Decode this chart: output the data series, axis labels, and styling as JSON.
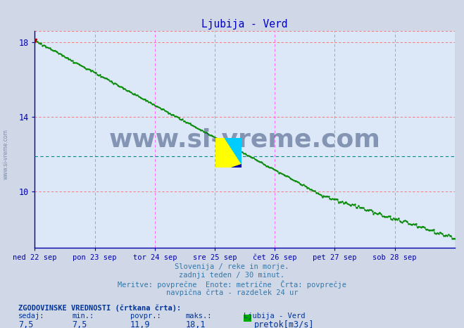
{
  "title": "Ljubija - Verd",
  "title_color": "#0000cc",
  "bg_color": "#d0d8e8",
  "plot_bg_color": "#dce8f8",
  "grid_color_h": "#ff6666",
  "grid_color_v": "#ff66ff",
  "xlabel_days": [
    "ned 22 sep",
    "pon 23 sep",
    "tor 24 sep",
    "sre 25 sep",
    "čet 26 sep",
    "pet 27 sep",
    "sob 28 sep"
  ],
  "day_positions": [
    0,
    48,
    96,
    144,
    192,
    240,
    288
  ],
  "total_points": 337,
  "ylim": [
    7.0,
    18.6
  ],
  "yticks": [
    10,
    14,
    18
  ],
  "line_color": "#008800",
  "avg_line_color": "#008888",
  "avg_line_value": 11.9,
  "watermark_text": "www.si-vreme.com",
  "watermark_color": "#1a3060",
  "watermark_alpha": 0.45,
  "sidebar_text": "www.si-vreme.com",
  "subtitle_lines": [
    "Slovenija / reke in morje.",
    "zadnji teden / 30 minut.",
    "Meritve: povprečne  Enote: metrične  Črta: povprečje",
    "navpična črta - razdelek 24 ur"
  ],
  "subtitle_color": "#3377aa",
  "legend_title": "ZGODOVINSKE VREDNOSTI (črtkana črta):",
  "legend_headers": [
    "sedaj:",
    "min.:",
    "povpr.:",
    "maks.:",
    "Ljubija - Verd"
  ],
  "legend_values": [
    "7,5",
    "7,5",
    "11,9",
    "18,1",
    "pretok[m3/s]"
  ],
  "legend_color": "#003399",
  "arrow_color": "#aa0000",
  "marker_color": "#aa0000",
  "spine_color": "#0000aa"
}
